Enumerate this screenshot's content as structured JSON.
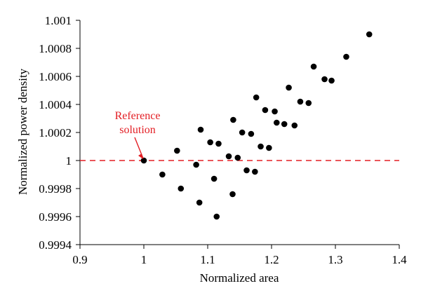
{
  "chart_data": {
    "type": "scatter",
    "xlabel": "Normalized area",
    "ylabel": "Normalized power density",
    "xlim": [
      0.9,
      1.4
    ],
    "ylim": [
      0.9994,
      1.001
    ],
    "x_ticks": [
      0.9,
      1,
      1.1,
      1.2,
      1.3,
      1.4
    ],
    "x_tick_labels": [
      "0.9",
      "1",
      "1.1",
      "1.2",
      "1.3",
      "1.4"
    ],
    "y_ticks": [
      0.9994,
      0.9996,
      0.9998,
      1,
      1.0002,
      1.0004,
      1.0006,
      1.0008,
      1.001
    ],
    "y_tick_labels": [
      "0.9994",
      "0.9996",
      "0.9998",
      "1",
      "1.0002",
      "1.0004",
      "1.0006",
      "1.0008",
      "1.001"
    ],
    "marker_color": "#000000",
    "reference_line": {
      "y": 1,
      "color": "#e31e24",
      "style": "dashed"
    },
    "annotation": {
      "lines": [
        "Reference",
        "solution"
      ],
      "points_to": [
        1,
        1
      ],
      "color": "#e31e24"
    },
    "points": [
      [
        1.0,
        1.0
      ],
      [
        1.029,
        0.9999
      ],
      [
        1.052,
        1.00007
      ],
      [
        1.058,
        0.9998
      ],
      [
        1.082,
        0.99997
      ],
      [
        1.087,
        0.9997
      ],
      [
        1.089,
        1.00022
      ],
      [
        1.104,
        1.00013
      ],
      [
        1.11,
        0.99987
      ],
      [
        1.114,
        0.9996
      ],
      [
        1.117,
        1.00012
      ],
      [
        1.133,
        1.00003
      ],
      [
        1.139,
        0.99976
      ],
      [
        1.14,
        1.00029
      ],
      [
        1.147,
        1.00002
      ],
      [
        1.154,
        1.0002
      ],
      [
        1.161,
        0.99993
      ],
      [
        1.168,
        1.00019
      ],
      [
        1.174,
        0.99992
      ],
      [
        1.176,
        1.00045
      ],
      [
        1.183,
        1.0001
      ],
      [
        1.19,
        1.00036
      ],
      [
        1.196,
        1.00009
      ],
      [
        1.205,
        1.00035
      ],
      [
        1.208,
        1.00027
      ],
      [
        1.22,
        1.00026
      ],
      [
        1.227,
        1.00052
      ],
      [
        1.236,
        1.00025
      ],
      [
        1.245,
        1.00042
      ],
      [
        1.258,
        1.00041
      ],
      [
        1.266,
        1.00067
      ],
      [
        1.283,
        1.00058
      ],
      [
        1.294,
        1.00057
      ],
      [
        1.317,
        1.00074
      ],
      [
        1.353,
        1.0009
      ]
    ]
  }
}
